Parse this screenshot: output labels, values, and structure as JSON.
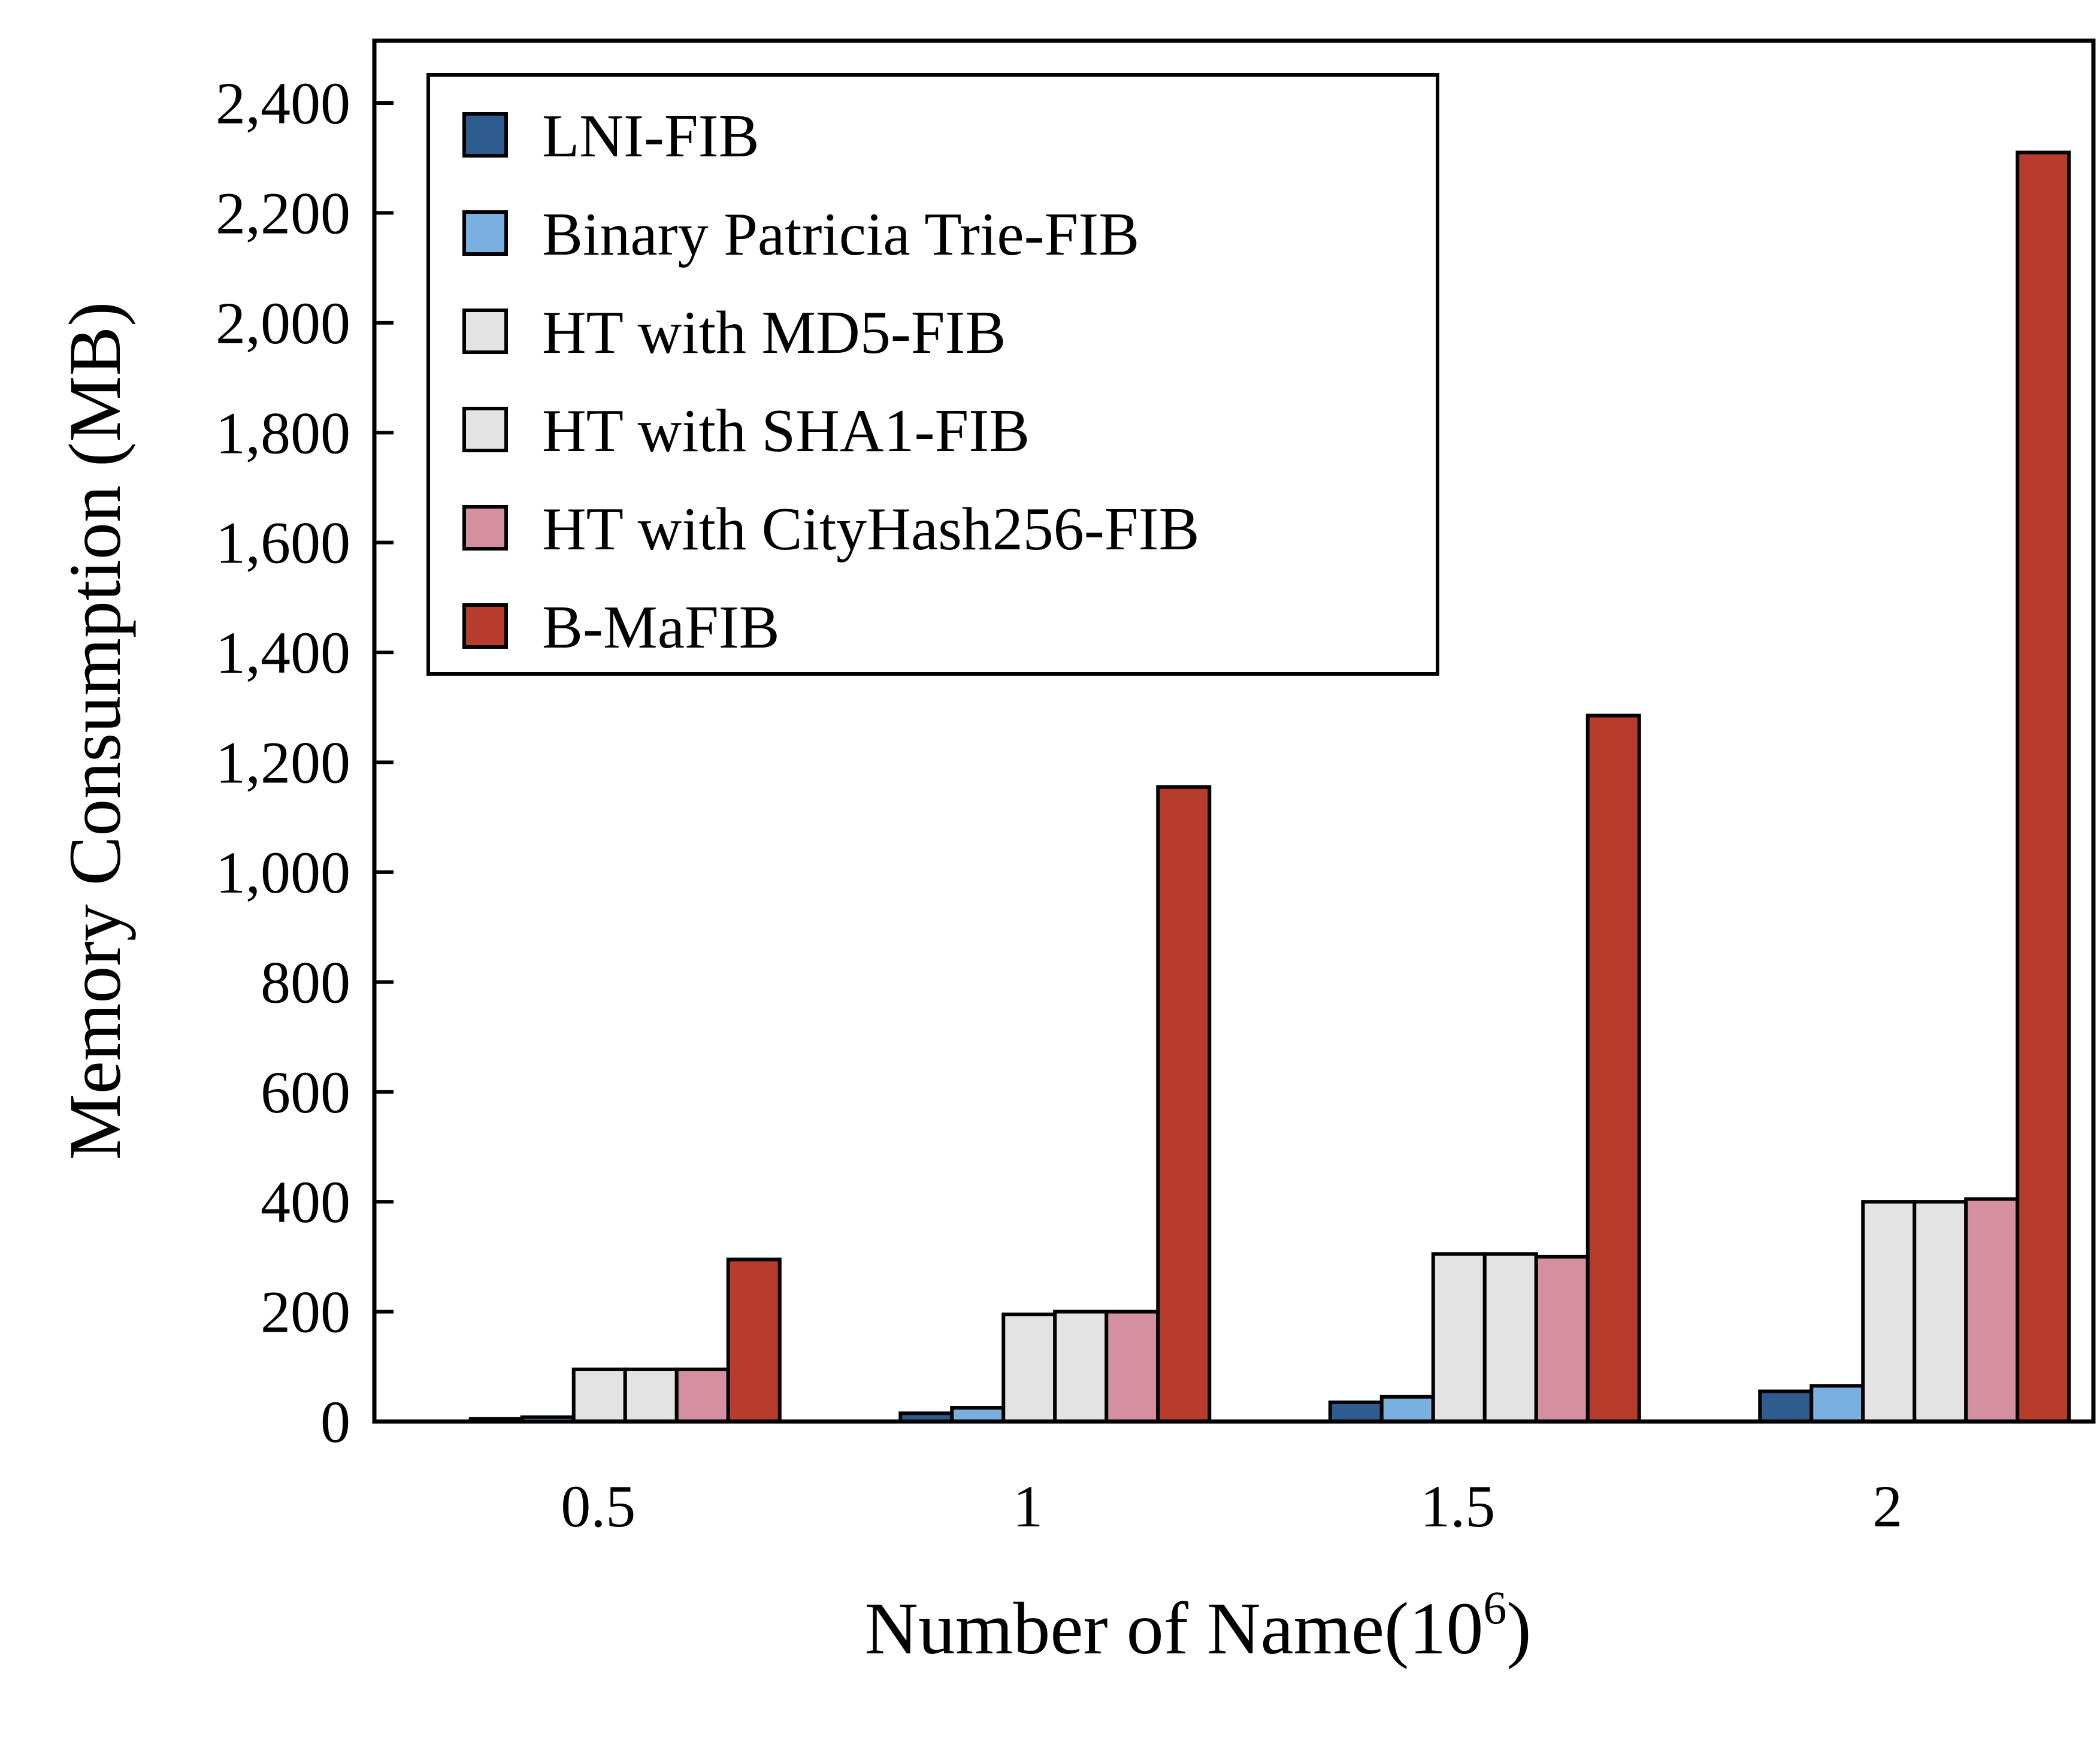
{
  "chart_data": {
    "type": "bar",
    "xlabel": "Number of Name(10",
    "xlabel_sup": "6",
    "xlabel_close": ")",
    "ylabel": "Memory Consumption  (MB)",
    "categories": [
      "0.5",
      "1",
      "1.5",
      "2"
    ],
    "ylim": [
      0,
      2500
    ],
    "yticks": [
      0,
      200,
      400,
      600,
      800,
      1000,
      1200,
      1400,
      1600,
      1800,
      2000,
      2200,
      2400
    ],
    "ytick_labels": [
      "0",
      "200",
      "400",
      "600",
      "800",
      "1,000",
      "1,200",
      "1,400",
      "1,600",
      "1,800",
      "2,000",
      "2,200",
      "2,400"
    ],
    "grid": false,
    "legend_position": "top-left",
    "series": [
      {
        "name": "LNI-FIB",
        "color": "#2f5c8f",
        "values": [
          5,
          15,
          35,
          55
        ]
      },
      {
        "name": "Binary Patricia Trie-FIB",
        "color": "#7ab0e0",
        "values": [
          8,
          25,
          45,
          65
        ]
      },
      {
        "name": "HT with MD5-FIB",
        "color": "#e3e3e3",
        "values": [
          95,
          195,
          305,
          400
        ]
      },
      {
        "name": "HT with SHA1-FIB",
        "color": "#e3e3e3",
        "values": [
          95,
          200,
          305,
          400
        ]
      },
      {
        "name": "HT with CityHash256-FIB",
        "color": "#d48fa0",
        "values": [
          95,
          200,
          300,
          405
        ]
      },
      {
        "name": "B-MaFIB",
        "color": "#b83c2c",
        "values": [
          295,
          1155,
          1285,
          2310
        ]
      }
    ]
  }
}
